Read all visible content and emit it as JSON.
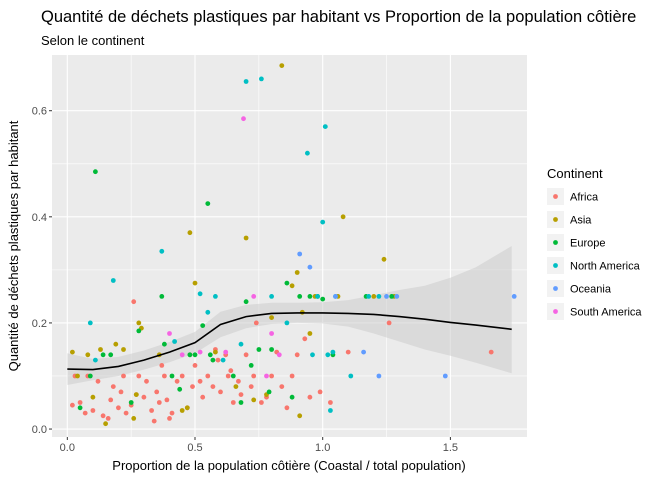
{
  "chart_data": {
    "type": "scatter",
    "title": "Quantité de déchets plastiques par habitant vs Proportion de la population côtière",
    "subtitle": "Selon le continent",
    "xlabel": "Proportion de la population côtière (Coastal / total population)",
    "ylabel": "Quantité de déchets plastiques par habitant",
    "xlim": [
      -0.06,
      1.8
    ],
    "ylim": [
      -0.015,
      0.705
    ],
    "xticks": [
      0.0,
      0.5,
      1.0,
      1.5
    ],
    "xtick_labels": [
      "0.0",
      "0.5",
      "1.0",
      "1.5"
    ],
    "yticks": [
      0.0,
      0.2,
      0.4,
      0.6
    ],
    "ytick_labels": [
      "0.0",
      "0.2",
      "0.4",
      "0.6"
    ],
    "grid": true,
    "legend": {
      "title": "Continent",
      "placement": "right"
    },
    "colors": {
      "Africa": "#F8766D",
      "Asia": "#B79F00",
      "Europe": "#00BA38",
      "North America": "#00BFC4",
      "Oceania": "#619CFF",
      "South America": "#F564E3",
      "smooth_line": "#000000",
      "smooth_band": "#cccccc",
      "panel": "#ebebeb"
    },
    "series": [
      {
        "name": "Africa",
        "points": [
          [
            0.02,
            0.045
          ],
          [
            0.03,
            0.1
          ],
          [
            0.05,
            0.05
          ],
          [
            0.07,
            0.03
          ],
          [
            0.08,
            0.1
          ],
          [
            0.1,
            0.035
          ],
          [
            0.12,
            0.09
          ],
          [
            0.14,
            0.025
          ],
          [
            0.16,
            0.02
          ],
          [
            0.17,
            0.055
          ],
          [
            0.18,
            0.08
          ],
          [
            0.2,
            0.04
          ],
          [
            0.21,
            0.07
          ],
          [
            0.22,
            0.1
          ],
          [
            0.23,
            0.03
          ],
          [
            0.25,
            0.045
          ],
          [
            0.26,
            0.24
          ],
          [
            0.27,
            0.065
          ],
          [
            0.28,
            0.1
          ],
          [
            0.3,
            0.06
          ],
          [
            0.31,
            0.09
          ],
          [
            0.33,
            0.035
          ],
          [
            0.34,
            0.015
          ],
          [
            0.35,
            0.07
          ],
          [
            0.36,
            0.05
          ],
          [
            0.37,
            0.12
          ],
          [
            0.38,
            0.1
          ],
          [
            0.39,
            0.055
          ],
          [
            0.4,
            0.02
          ],
          [
            0.41,
            0.03
          ],
          [
            0.43,
            0.09
          ],
          [
            0.45,
            0.1
          ],
          [
            0.47,
            0.04
          ],
          [
            0.48,
            0.14
          ],
          [
            0.49,
            0.08
          ],
          [
            0.5,
            0.12
          ],
          [
            0.52,
            0.09
          ],
          [
            0.53,
            0.06
          ],
          [
            0.55,
            0.1
          ],
          [
            0.57,
            0.08
          ],
          [
            0.58,
            0.15
          ],
          [
            0.59,
            0.13
          ],
          [
            0.6,
            0.07
          ],
          [
            0.62,
            0.14
          ],
          [
            0.63,
            0.1
          ],
          [
            0.64,
            0.11
          ],
          [
            0.65,
            0.05
          ],
          [
            0.67,
            0.09
          ],
          [
            0.68,
            0.065
          ],
          [
            0.7,
            0.14
          ],
          [
            0.72,
            0.08
          ],
          [
            0.73,
            0.1
          ],
          [
            0.74,
            0.2
          ],
          [
            0.76,
            0.05
          ],
          [
            0.78,
            0.06
          ],
          [
            0.8,
            0.1
          ],
          [
            0.82,
            0.145
          ],
          [
            0.84,
            0.08
          ],
          [
            0.86,
            0.04
          ],
          [
            0.88,
            0.1
          ],
          [
            0.9,
            0.14
          ],
          [
            0.93,
            0.17
          ],
          [
            0.95,
            0.06
          ],
          [
            0.99,
            0.07
          ],
          [
            1.03,
            0.05
          ],
          [
            1.1,
            0.145
          ],
          [
            1.26,
            0.2
          ],
          [
            1.66,
            0.145
          ]
        ]
      },
      {
        "name": "Asia",
        "points": [
          [
            0.02,
            0.145
          ],
          [
            0.04,
            0.1
          ],
          [
            0.08,
            0.14
          ],
          [
            0.1,
            0.06
          ],
          [
            0.13,
            0.15
          ],
          [
            0.15,
            0.01
          ],
          [
            0.19,
            0.16
          ],
          [
            0.22,
            0.15
          ],
          [
            0.26,
            0.02
          ],
          [
            0.27,
            0.065
          ],
          [
            0.28,
            0.2
          ],
          [
            0.29,
            0.19
          ],
          [
            0.36,
            0.14
          ],
          [
            0.45,
            0.035
          ],
          [
            0.47,
            0.04
          ],
          [
            0.48,
            0.37
          ],
          [
            0.5,
            0.275
          ],
          [
            0.58,
            0.145
          ],
          [
            0.66,
            0.08
          ],
          [
            0.7,
            0.36
          ],
          [
            0.73,
            0.055
          ],
          [
            0.78,
            0.065
          ],
          [
            0.8,
            0.21
          ],
          [
            0.84,
            0.685
          ],
          [
            0.88,
            0.27
          ],
          [
            0.9,
            0.295
          ],
          [
            0.91,
            0.025
          ],
          [
            0.92,
            0.22
          ],
          [
            0.95,
            0.18
          ],
          [
            0.97,
            0.25
          ],
          [
            1.06,
            0.25
          ],
          [
            1.08,
            0.4
          ],
          [
            1.2,
            0.25
          ],
          [
            1.24,
            0.32
          ],
          [
            1.28,
            0.25
          ]
        ]
      },
      {
        "name": "Europe",
        "points": [
          [
            0.05,
            0.04
          ],
          [
            0.09,
            0.1
          ],
          [
            0.11,
            0.485
          ],
          [
            0.14,
            0.14
          ],
          [
            0.17,
            0.14
          ],
          [
            0.25,
            0.05
          ],
          [
            0.28,
            0.185
          ],
          [
            0.37,
            0.25
          ],
          [
            0.38,
            0.16
          ],
          [
            0.41,
            0.1
          ],
          [
            0.44,
            0.075
          ],
          [
            0.48,
            0.14
          ],
          [
            0.5,
            0.14
          ],
          [
            0.53,
            0.195
          ],
          [
            0.55,
            0.425
          ],
          [
            0.56,
            0.14
          ],
          [
            0.57,
            0.13
          ],
          [
            0.65,
            0.1
          ],
          [
            0.68,
            0.05
          ],
          [
            0.7,
            0.24
          ],
          [
            0.72,
            0.12
          ],
          [
            0.75,
            0.15
          ],
          [
            0.79,
            0.07
          ],
          [
            0.8,
            0.15
          ],
          [
            0.86,
            0.275
          ],
          [
            0.88,
            0.06
          ],
          [
            0.91,
            0.25
          ],
          [
            0.95,
            0.25
          ],
          [
            0.98,
            0.25
          ],
          [
            1.0,
            0.245
          ],
          [
            1.04,
            0.14
          ],
          [
            1.17,
            0.25
          ],
          [
            1.27,
            0.25
          ]
        ]
      },
      {
        "name": "North America",
        "points": [
          [
            0.09,
            0.2
          ],
          [
            0.11,
            0.13
          ],
          [
            0.18,
            0.28
          ],
          [
            0.37,
            0.335
          ],
          [
            0.42,
            0.165
          ],
          [
            0.52,
            0.255
          ],
          [
            0.55,
            0.22
          ],
          [
            0.58,
            0.25
          ],
          [
            0.61,
            0.13
          ],
          [
            0.68,
            0.16
          ],
          [
            0.7,
            0.655
          ],
          [
            0.76,
            0.66
          ],
          [
            0.8,
            0.25
          ],
          [
            0.86,
            0.2
          ],
          [
            0.94,
            0.52
          ],
          [
            0.96,
            0.14
          ],
          [
            0.98,
            0.25
          ],
          [
            1.0,
            0.39
          ],
          [
            1.01,
            0.57
          ],
          [
            1.02,
            0.14
          ],
          [
            1.03,
            0.035
          ],
          [
            1.04,
            0.145
          ],
          [
            1.05,
            0.25
          ],
          [
            1.11,
            0.1
          ],
          [
            1.18,
            0.25
          ],
          [
            1.22,
            0.25
          ]
        ]
      },
      {
        "name": "Oceania",
        "points": [
          [
            0.91,
            0.33
          ],
          [
            0.95,
            0.305
          ],
          [
            1.05,
            0.25
          ],
          [
            1.16,
            0.145
          ],
          [
            1.22,
            0.1
          ],
          [
            1.25,
            0.25
          ],
          [
            1.29,
            0.25
          ],
          [
            1.48,
            0.1
          ],
          [
            1.75,
            0.25
          ]
        ]
      },
      {
        "name": "South America",
        "points": [
          [
            0.4,
            0.18
          ],
          [
            0.45,
            0.14
          ],
          [
            0.52,
            0.145
          ],
          [
            0.62,
            0.145
          ],
          [
            0.69,
            0.585
          ],
          [
            0.73,
            0.25
          ],
          [
            0.78,
            0.1
          ],
          [
            0.8,
            0.18
          ],
          [
            0.83,
            0.14
          ]
        ]
      }
    ],
    "smooth": {
      "x": [
        0.0,
        0.1,
        0.2,
        0.3,
        0.4,
        0.5,
        0.6,
        0.7,
        0.8,
        0.9,
        1.0,
        1.1,
        1.2,
        1.3,
        1.4,
        1.5,
        1.6,
        1.74
      ],
      "y": [
        0.113,
        0.112,
        0.118,
        0.13,
        0.145,
        0.163,
        0.197,
        0.212,
        0.218,
        0.219,
        0.219,
        0.218,
        0.216,
        0.212,
        0.207,
        0.201,
        0.196,
        0.188
      ],
      "lower": [
        0.083,
        0.092,
        0.1,
        0.112,
        0.126,
        0.143,
        0.173,
        0.19,
        0.198,
        0.2,
        0.199,
        0.193,
        0.18,
        0.165,
        0.15,
        0.138,
        0.125,
        0.105
      ],
      "upper": [
        0.143,
        0.132,
        0.136,
        0.148,
        0.164,
        0.183,
        0.221,
        0.234,
        0.238,
        0.238,
        0.239,
        0.243,
        0.252,
        0.262,
        0.27,
        0.285,
        0.305,
        0.345
      ]
    }
  }
}
